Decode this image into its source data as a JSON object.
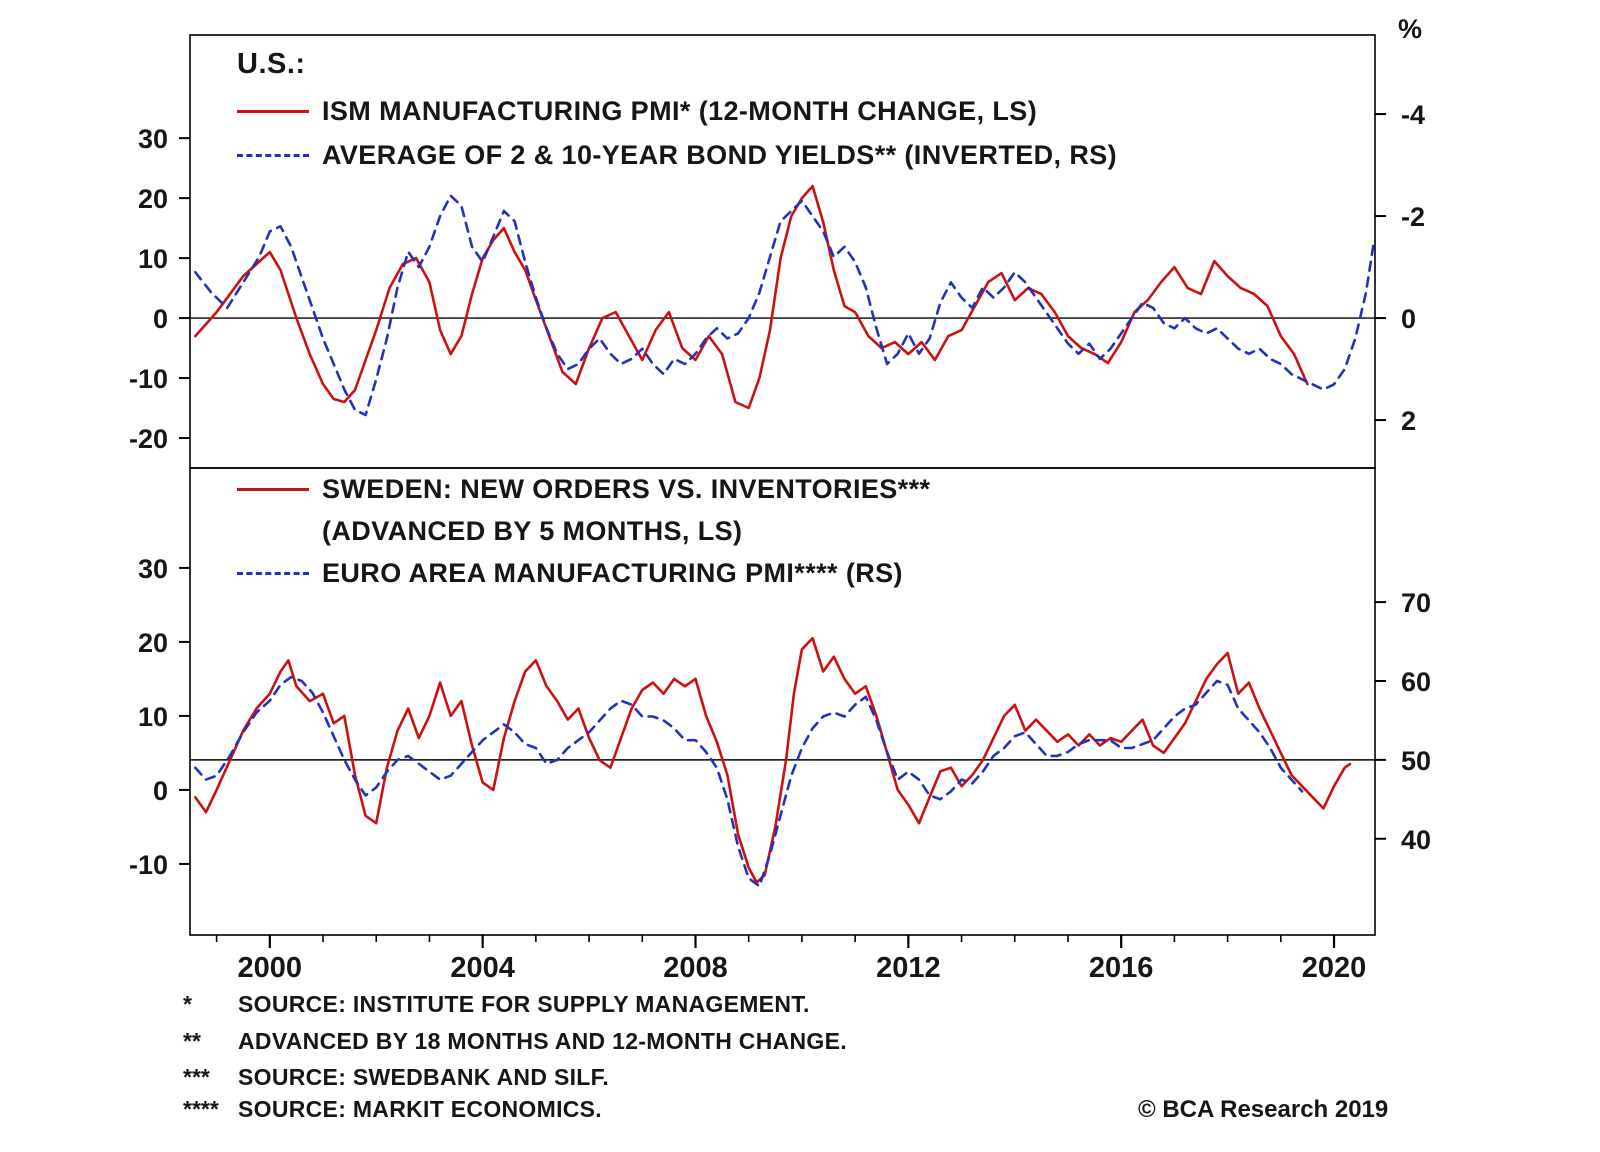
{
  "page": {
    "copyright": "© BCA Research 2019"
  },
  "footnotes": [
    {
      "marker": "*",
      "text": "SOURCE: INSTITUTE FOR SUPPLY MANAGEMENT."
    },
    {
      "marker": "**",
      "text": "ADVANCED BY 18 MONTHS AND 12-MONTH CHANGE."
    },
    {
      "marker": "***",
      "text": "SOURCE: SWEDBANK AND SILF."
    },
    {
      "marker": "****",
      "text": "SOURCE: MARKIT ECONOMICS."
    }
  ],
  "x_axis": {
    "ticks": [
      2000,
      2004,
      2008,
      2012,
      2016,
      2020
    ],
    "minor_step": 1
  },
  "colors": {
    "red_line": "#cc1111",
    "blue_line": "#2233bb",
    "axis": "#000000",
    "text": "#161616"
  },
  "chart_data": [
    {
      "type": "line",
      "panel": "top",
      "region_label": "U.S.:",
      "legend": [
        {
          "label": "ISM MANUFACTURING PMI* (12-MONTH CHANGE, LS)",
          "color": "#cc1111",
          "style": "solid"
        },
        {
          "label": "AVERAGE OF 2 & 10-YEAR BOND YIELDS** (INVERTED, RS)",
          "color": "#2233bb",
          "style": "dashed"
        }
      ],
      "left_axis": {
        "ticks": [
          30,
          20,
          10,
          0,
          -10,
          -20
        ],
        "top_value": 47.2,
        "bottom_value": -25
      },
      "right_axis": {
        "unit": "%",
        "ticks": [
          -4,
          -2,
          0,
          2
        ],
        "top_value": -5.55,
        "bottom_value": 2.94,
        "inverted": true
      },
      "baseline": {
        "axis": "left",
        "value": 0
      },
      "x_range": [
        1998.5,
        2020.77
      ],
      "series": [
        {
          "id": "ism-pmi-12m-change-line",
          "name": "ISM MANUFACTURING PMI (12-MONTH CHANGE)",
          "axis": "left",
          "color": "#cc1111",
          "style": "solid",
          "x": [
            1998.6,
            1998.8,
            1999.0,
            1999.25,
            1999.5,
            1999.75,
            2000.0,
            2000.2,
            2000.5,
            2000.75,
            2001.0,
            2001.2,
            2001.4,
            2001.6,
            2001.8,
            2002.0,
            2002.25,
            2002.5,
            2002.75,
            2003.0,
            2003.2,
            2003.4,
            2003.6,
            2003.8,
            2004.0,
            2004.2,
            2004.4,
            2004.6,
            2004.8,
            2005.0,
            2005.25,
            2005.5,
            2005.75,
            2006.0,
            2006.25,
            2006.5,
            2006.75,
            2007.0,
            2007.25,
            2007.5,
            2007.75,
            2008.0,
            2008.25,
            2008.5,
            2008.75,
            2009.0,
            2009.2,
            2009.4,
            2009.6,
            2009.8,
            2010.0,
            2010.2,
            2010.4,
            2010.6,
            2010.8,
            2011.0,
            2011.25,
            2011.5,
            2011.75,
            2012.0,
            2012.25,
            2012.5,
            2012.75,
            2013.0,
            2013.25,
            2013.5,
            2013.75,
            2014.0,
            2014.25,
            2014.5,
            2014.75,
            2015.0,
            2015.25,
            2015.5,
            2015.75,
            2016.0,
            2016.25,
            2016.5,
            2016.75,
            2017.0,
            2017.25,
            2017.5,
            2017.75,
            2018.0,
            2018.25,
            2018.5,
            2018.75,
            2019.0,
            2019.25,
            2019.5
          ],
          "y": [
            -3,
            -1,
            1,
            4,
            7,
            9,
            11,
            8,
            0,
            -6,
            -11,
            -13.5,
            -14,
            -12,
            -7,
            -2,
            5,
            9,
            10,
            6,
            -2,
            -6,
            -3,
            4,
            10,
            13,
            15,
            11,
            8,
            3,
            -3,
            -9,
            -11,
            -5,
            0,
            1,
            -3,
            -7,
            -2,
            1,
            -5,
            -7,
            -3,
            -6,
            -14,
            -15,
            -10,
            -2,
            10,
            17,
            20,
            22,
            16,
            8,
            2,
            1,
            -3,
            -5,
            -4,
            -6,
            -4,
            -7,
            -3,
            -2,
            2,
            6,
            7.5,
            3,
            5,
            4,
            1,
            -3,
            -5,
            -6,
            -7.5,
            -4,
            1,
            3,
            6,
            8.5,
            5,
            4,
            9.5,
            7,
            5,
            4,
            2,
            -3,
            -6,
            -11
          ]
        },
        {
          "id": "bond-yields-inverted-line",
          "name": "AVERAGE OF 2 & 10-YEAR BOND YIELDS (INVERTED)",
          "axis": "right",
          "color": "#2233bb",
          "style": "dashed",
          "x": [
            1998.6,
            1998.9,
            1999.2,
            1999.5,
            1999.8,
            2000.0,
            2000.2,
            2000.4,
            2000.6,
            2000.8,
            2001.0,
            2001.2,
            2001.4,
            2001.6,
            2001.8,
            2002.0,
            2002.2,
            2002.4,
            2002.6,
            2002.8,
            2003.0,
            2003.2,
            2003.4,
            2003.6,
            2003.8,
            2004.0,
            2004.2,
            2004.4,
            2004.6,
            2004.8,
            2005.0,
            2005.2,
            2005.4,
            2005.6,
            2005.8,
            2006.0,
            2006.2,
            2006.4,
            2006.6,
            2006.8,
            2007.0,
            2007.2,
            2007.4,
            2007.6,
            2007.8,
            2008.0,
            2008.2,
            2008.4,
            2008.6,
            2008.8,
            2009.0,
            2009.2,
            2009.4,
            2009.6,
            2009.8,
            2010.0,
            2010.2,
            2010.4,
            2010.6,
            2010.8,
            2011.0,
            2011.2,
            2011.4,
            2011.6,
            2011.8,
            2012.0,
            2012.2,
            2012.4,
            2012.6,
            2012.8,
            2013.0,
            2013.2,
            2013.4,
            2013.6,
            2013.8,
            2014.0,
            2014.2,
            2014.4,
            2014.6,
            2014.8,
            2015.0,
            2015.2,
            2015.4,
            2015.6,
            2015.8,
            2016.0,
            2016.2,
            2016.4,
            2016.6,
            2016.8,
            2017.0,
            2017.2,
            2017.4,
            2017.6,
            2017.8,
            2018.0,
            2018.2,
            2018.4,
            2018.6,
            2018.8,
            2019.0,
            2019.2,
            2019.4,
            2019.6,
            2019.8,
            2020.0,
            2020.2,
            2020.4,
            2020.6,
            2020.75
          ],
          "y": [
            -0.9,
            -0.5,
            -0.2,
            -0.7,
            -1.2,
            -1.7,
            -1.8,
            -1.4,
            -0.8,
            -0.2,
            0.4,
            0.9,
            1.4,
            1.8,
            1.9,
            1.2,
            0.4,
            -0.6,
            -1.3,
            -1.0,
            -1.4,
            -2.0,
            -2.4,
            -2.2,
            -1.4,
            -1.1,
            -1.6,
            -2.1,
            -1.9,
            -1.1,
            -0.4,
            0.2,
            0.7,
            1.0,
            0.9,
            0.6,
            0.4,
            0.7,
            0.9,
            0.8,
            0.6,
            0.9,
            1.1,
            0.8,
            0.9,
            0.7,
            0.4,
            0.2,
            0.4,
            0.3,
            0.0,
            -0.5,
            -1.2,
            -1.9,
            -2.1,
            -2.3,
            -2.0,
            -1.7,
            -1.2,
            -1.4,
            -1.1,
            -0.6,
            0.2,
            0.9,
            0.7,
            0.3,
            0.7,
            0.4,
            -0.3,
            -0.7,
            -0.4,
            -0.2,
            -0.6,
            -0.4,
            -0.6,
            -0.9,
            -0.7,
            -0.4,
            -0.1,
            0.2,
            0.5,
            0.7,
            0.5,
            0.8,
            0.6,
            0.3,
            0.0,
            -0.3,
            -0.2,
            0.1,
            0.2,
            0.0,
            0.2,
            0.3,
            0.2,
            0.4,
            0.6,
            0.7,
            0.6,
            0.8,
            0.9,
            1.1,
            1.2,
            1.3,
            1.4,
            1.3,
            1.0,
            0.4,
            -0.5,
            -1.5
          ]
        }
      ]
    },
    {
      "type": "line",
      "panel": "bottom",
      "legend": [
        {
          "label": "SWEDEN: NEW ORDERS VS. INVENTORIES***",
          "label2": "(ADVANCED BY 5 MONTHS, LS)",
          "color": "#cc1111",
          "style": "solid"
        },
        {
          "label": "EURO AREA MANUFACTURING PMI**** (RS)",
          "color": "#2233bb",
          "style": "dashed"
        }
      ],
      "left_axis": {
        "ticks": [
          30,
          20,
          10,
          0,
          -10
        ],
        "top_value": 43.5,
        "bottom_value": -19.6
      },
      "right_axis": {
        "ticks": [
          70,
          60,
          50,
          40
        ],
        "top_value": 87.0,
        "bottom_value": 27.8
      },
      "baseline": {
        "axis": "right",
        "value": 50
      },
      "x_range": [
        1998.5,
        2020.77
      ],
      "series": [
        {
          "id": "sweden-orders-vs-inventories-line",
          "name": "SWEDEN NEW ORDERS VS. INVENTORIES (ADVANCED 5 MONTHS)",
          "axis": "left",
          "color": "#cc1111",
          "style": "solid",
          "x": [
            1998.6,
            1998.8,
            1999.0,
            1999.25,
            1999.5,
            1999.75,
            2000.0,
            2000.2,
            2000.35,
            2000.5,
            2000.75,
            2001.0,
            2001.2,
            2001.4,
            2001.6,
            2001.8,
            2002.0,
            2002.2,
            2002.4,
            2002.6,
            2002.8,
            2003.0,
            2003.2,
            2003.4,
            2003.6,
            2003.8,
            2004.0,
            2004.2,
            2004.4,
            2004.6,
            2004.8,
            2005.0,
            2005.2,
            2005.4,
            2005.6,
            2005.8,
            2006.0,
            2006.2,
            2006.4,
            2006.6,
            2006.8,
            2007.0,
            2007.2,
            2007.4,
            2007.6,
            2007.8,
            2008.0,
            2008.2,
            2008.4,
            2008.6,
            2008.8,
            2009.0,
            2009.15,
            2009.3,
            2009.5,
            2009.7,
            2009.85,
            2010.0,
            2010.2,
            2010.4,
            2010.6,
            2010.8,
            2011.0,
            2011.2,
            2011.4,
            2011.6,
            2011.8,
            2012.0,
            2012.2,
            2012.4,
            2012.6,
            2012.8,
            2013.0,
            2013.2,
            2013.4,
            2013.6,
            2013.8,
            2014.0,
            2014.2,
            2014.4,
            2014.6,
            2014.8,
            2015.0,
            2015.2,
            2015.4,
            2015.6,
            2015.8,
            2016.0,
            2016.2,
            2016.4,
            2016.6,
            2016.8,
            2017.0,
            2017.2,
            2017.4,
            2017.6,
            2017.8,
            2018.0,
            2018.2,
            2018.4,
            2018.6,
            2018.8,
            2019.0,
            2019.2,
            2019.4,
            2019.6,
            2019.8,
            2020.0,
            2020.2,
            2020.3
          ],
          "y": [
            -1,
            -3,
            0,
            4,
            8,
            11,
            13,
            16,
            17.5,
            14,
            12,
            13,
            9,
            10,
            2,
            -3.5,
            -4.5,
            3,
            8,
            11,
            7,
            10,
            14.5,
            10,
            12,
            6,
            1,
            0,
            7,
            12,
            16,
            17.5,
            14,
            12,
            9.5,
            11,
            7,
            4,
            3,
            7,
            11,
            13.5,
            14.5,
            13,
            15,
            14,
            15,
            10,
            6.5,
            2,
            -6,
            -10.5,
            -12.5,
            -11.5,
            -5,
            4,
            13,
            19,
            20.5,
            16,
            18,
            15,
            13,
            14,
            10,
            5,
            0,
            -2,
            -4.5,
            -1,
            2.5,
            3,
            0.5,
            2,
            4,
            7,
            10,
            11.5,
            8,
            9.5,
            8,
            6.5,
            7.5,
            6,
            7.5,
            6,
            7,
            6.5,
            8,
            9.5,
            6,
            5,
            7,
            9,
            12,
            15,
            17,
            18.5,
            13,
            14.5,
            11,
            8,
            5,
            2,
            0.5,
            -1,
            -2.5,
            0.5,
            3,
            3.5
          ]
        },
        {
          "id": "euro-area-pmi-line",
          "name": "EURO AREA MANUFACTURING PMI",
          "axis": "right",
          "color": "#2233bb",
          "style": "dashed",
          "x": [
            1998.6,
            1998.8,
            1999.0,
            1999.25,
            1999.5,
            1999.75,
            2000.0,
            2000.2,
            2000.4,
            2000.6,
            2000.8,
            2001.0,
            2001.2,
            2001.4,
            2001.6,
            2001.8,
            2002.0,
            2002.2,
            2002.4,
            2002.6,
            2002.8,
            2003.0,
            2003.2,
            2003.4,
            2003.6,
            2003.8,
            2004.0,
            2004.2,
            2004.4,
            2004.6,
            2004.8,
            2005.0,
            2005.2,
            2005.4,
            2005.6,
            2005.8,
            2006.0,
            2006.2,
            2006.4,
            2006.6,
            2006.8,
            2007.0,
            2007.2,
            2007.4,
            2007.6,
            2007.8,
            2008.0,
            2008.2,
            2008.4,
            2008.6,
            2008.8,
            2009.0,
            2009.2,
            2009.4,
            2009.6,
            2009.8,
            2010.0,
            2010.2,
            2010.4,
            2010.6,
            2010.8,
            2011.0,
            2011.2,
            2011.4,
            2011.6,
            2011.8,
            2012.0,
            2012.2,
            2012.4,
            2012.6,
            2012.8,
            2013.0,
            2013.2,
            2013.4,
            2013.6,
            2013.8,
            2014.0,
            2014.2,
            2014.4,
            2014.6,
            2014.8,
            2015.0,
            2015.2,
            2015.4,
            2015.6,
            2015.8,
            2016.0,
            2016.2,
            2016.4,
            2016.6,
            2016.8,
            2017.0,
            2017.2,
            2017.4,
            2017.6,
            2017.8,
            2018.0,
            2018.2,
            2018.4,
            2018.6,
            2018.8,
            2019.0,
            2019.2,
            2019.4
          ],
          "y": [
            49,
            47.5,
            48,
            50.5,
            53.5,
            56,
            57.5,
            59.5,
            60.5,
            60,
            58.5,
            56,
            53,
            50,
            47.5,
            45.5,
            46.5,
            48.5,
            50,
            50.5,
            49.5,
            48.5,
            47.5,
            48,
            49.5,
            51,
            52.5,
            53.5,
            54.5,
            53.5,
            52,
            51.5,
            49.5,
            50,
            51.5,
            52.5,
            53.5,
            55,
            56.5,
            57.5,
            57,
            55.5,
            55.5,
            55,
            54,
            52.5,
            52.5,
            51,
            49,
            45,
            39,
            35,
            34,
            38,
            43,
            48,
            51.5,
            54,
            55.5,
            56,
            55.5,
            57,
            58,
            55,
            51,
            47.5,
            48.5,
            47.5,
            45.5,
            45,
            46,
            47.5,
            47,
            48.5,
            50.5,
            51.5,
            53,
            53.5,
            52,
            50.5,
            50.5,
            51,
            52,
            52.5,
            52.5,
            52.5,
            51.5,
            51.5,
            52,
            52.5,
            54,
            55.5,
            56.5,
            57,
            58.5,
            60,
            59.5,
            56.5,
            55,
            53.5,
            51.5,
            49,
            47.5,
            46
          ]
        }
      ]
    }
  ]
}
